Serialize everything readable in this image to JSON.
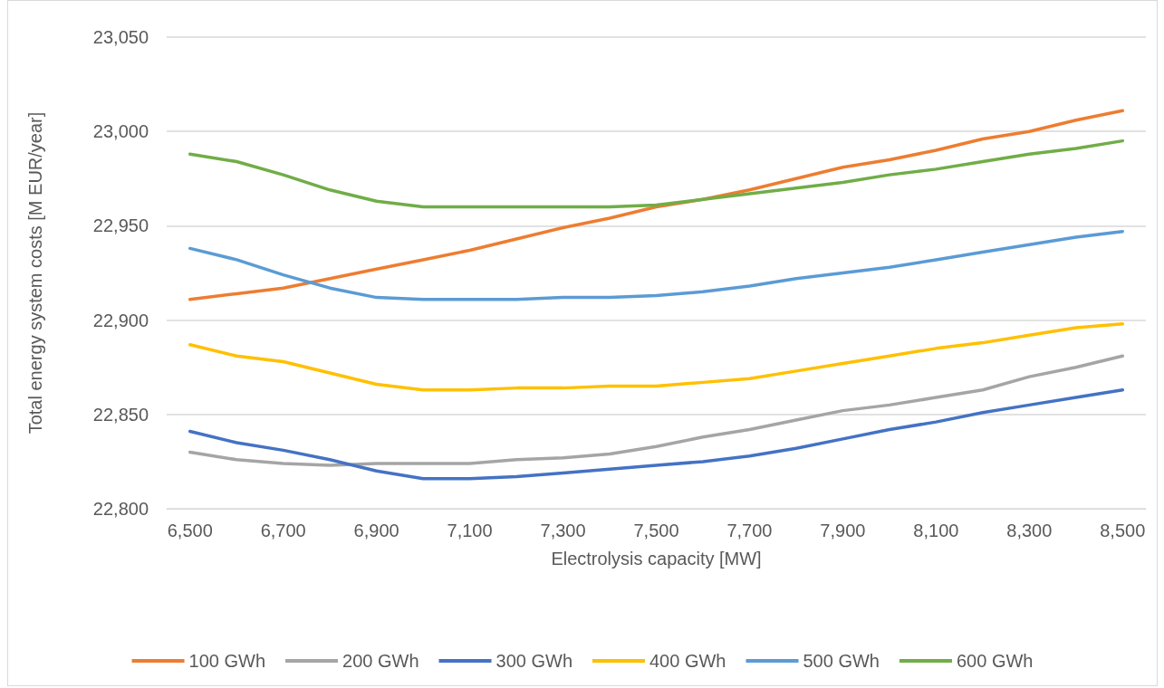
{
  "chart_data": {
    "type": "line",
    "xlabel": "Electrolysis capacity [MW]",
    "ylabel": "Total energy system costs [M EUR/year]",
    "categories": [
      "6,500",
      null,
      "6,700",
      null,
      "6,900",
      null,
      "7,100",
      null,
      "7,300",
      null,
      "7,500",
      null,
      "7,700",
      null,
      "7,900",
      null,
      "8,100",
      null,
      "8,300",
      null,
      "8,500"
    ],
    "ylim": [
      22800,
      23050
    ],
    "yticks": [
      {
        "value": 22800,
        "label": "22,800"
      },
      {
        "value": 22850,
        "label": "22,850"
      },
      {
        "value": 22900,
        "label": "22,900"
      },
      {
        "value": 22950,
        "label": "22,950"
      },
      {
        "value": 23000,
        "label": "23,000"
      },
      {
        "value": 23050,
        "label": "23,050"
      }
    ],
    "grid": "y",
    "legend": "bottom",
    "marker": "none",
    "line_style": "solid",
    "series": [
      {
        "name": "100 GWh",
        "color": "#ed7d31",
        "values": [
          22911,
          22914,
          22917,
          22922,
          22927,
          22932,
          22937,
          22943,
          22949,
          22954,
          22960,
          22964,
          22969,
          22975,
          22981,
          22985,
          22990,
          22996,
          23000,
          23006,
          23011
        ]
      },
      {
        "name": "200 GWh",
        "color": "#a5a5a5",
        "values": [
          22830,
          22826,
          22824,
          22823,
          22824,
          22824,
          22824,
          22826,
          22827,
          22829,
          22833,
          22838,
          22842,
          22847,
          22852,
          22855,
          22859,
          22863,
          22870,
          22875,
          22881
        ]
      },
      {
        "name": "300 GWh",
        "color": "#4472c4",
        "values": [
          22841,
          22835,
          22831,
          22826,
          22820,
          22816,
          22816,
          22817,
          22819,
          22821,
          22823,
          22825,
          22828,
          22832,
          22837,
          22842,
          22846,
          22851,
          22855,
          22859,
          22863
        ]
      },
      {
        "name": "400 GWh",
        "color": "#ffc000",
        "values": [
          22887,
          22881,
          22878,
          22872,
          22866,
          22863,
          22863,
          22864,
          22864,
          22865,
          22865,
          22867,
          22869,
          22873,
          22877,
          22881,
          22885,
          22888,
          22892,
          22896,
          22898
        ]
      },
      {
        "name": "500 GWh",
        "color": "#5b9bd5",
        "values": [
          22938,
          22932,
          22924,
          22917,
          22912,
          22911,
          22911,
          22911,
          22912,
          22912,
          22913,
          22915,
          22918,
          22922,
          22925,
          22928,
          22932,
          22936,
          22940,
          22944,
          22947
        ]
      },
      {
        "name": "600 GWh",
        "color": "#70ad47",
        "values": [
          22988,
          22984,
          22977,
          22969,
          22963,
          22960,
          22960,
          22960,
          22960,
          22960,
          22961,
          22964,
          22967,
          22970,
          22973,
          22977,
          22980,
          22984,
          22988,
          22991,
          22995
        ]
      }
    ]
  }
}
